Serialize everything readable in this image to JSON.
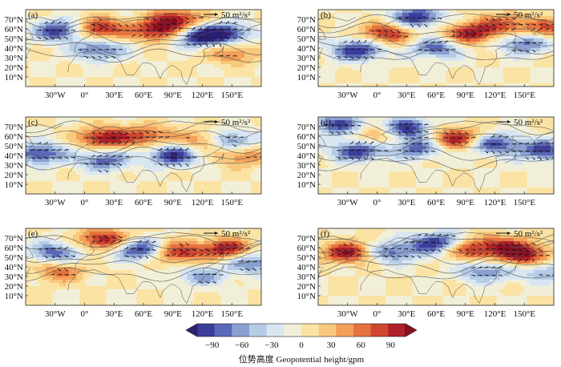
{
  "chart_data": {
    "type": "heatmap",
    "title": "",
    "description_kind": "six-panel map of geopotential height anomalies with wave-activity flux vectors",
    "panels": [
      {
        "label": "(a)",
        "reference_vector": "50 m²/s²",
        "centers": [
          {
            "lon": -25,
            "lat": 58,
            "value": -90
          },
          {
            "lon": 15,
            "lat": 60,
            "value": 90
          },
          {
            "lon": 15,
            "lat": 38,
            "value": -70
          },
          {
            "lon": 75,
            "lat": 58,
            "value": 90
          },
          {
            "lon": 95,
            "lat": 70,
            "value": 80
          },
          {
            "lon": 115,
            "lat": 52,
            "value": -90
          },
          {
            "lon": 145,
            "lat": 55,
            "value": -80
          },
          {
            "lon": 150,
            "lat": 35,
            "value": 50
          }
        ]
      },
      {
        "label": "(b)",
        "reference_vector": "50 m²/s²",
        "centers": [
          {
            "lon": 40,
            "lat": 72,
            "value": -90
          },
          {
            "lon": 10,
            "lat": 55,
            "value": 80
          },
          {
            "lon": -20,
            "lat": 38,
            "value": -90
          },
          {
            "lon": 95,
            "lat": 55,
            "value": 90
          },
          {
            "lon": 130,
            "lat": 65,
            "value": 60
          },
          {
            "lon": 60,
            "lat": 40,
            "value": -70
          },
          {
            "lon": 150,
            "lat": 45,
            "value": -70
          },
          {
            "lon": 175,
            "lat": 60,
            "value": 60
          }
        ]
      },
      {
        "label": "(c)",
        "reference_vector": "50 m²/s²",
        "centers": [
          {
            "lon": 20,
            "lat": 58,
            "value": 90
          },
          {
            "lon": -45,
            "lat": 42,
            "value": -80
          },
          {
            "lon": 20,
            "lat": 35,
            "value": -70
          },
          {
            "lon": 65,
            "lat": 60,
            "value": 60
          },
          {
            "lon": 90,
            "lat": 40,
            "value": -90
          },
          {
            "lon": 125,
            "lat": 55,
            "value": 70
          },
          {
            "lon": 145,
            "lat": 55,
            "value": -90
          },
          {
            "lon": 160,
            "lat": 40,
            "value": 50
          }
        ]
      },
      {
        "label": "(d)",
        "reference_vector": "50 m²/s²",
        "centers": [
          {
            "lon": -40,
            "lat": 72,
            "value": -80
          },
          {
            "lon": 30,
            "lat": 68,
            "value": -90
          },
          {
            "lon": -20,
            "lat": 45,
            "value": -90
          },
          {
            "lon": 40,
            "lat": 48,
            "value": -70
          },
          {
            "lon": 80,
            "lat": 58,
            "value": 90
          },
          {
            "lon": 120,
            "lat": 52,
            "value": -80
          },
          {
            "lon": 170,
            "lat": 45,
            "value": -80
          },
          {
            "lon": 0,
            "lat": 60,
            "value": 50
          }
        ]
      },
      {
        "label": "(e)",
        "reference_vector": "50 m²/s²",
        "centers": [
          {
            "lon": -30,
            "lat": 55,
            "value": -70
          },
          {
            "lon": 20,
            "lat": 68,
            "value": 90
          },
          {
            "lon": 55,
            "lat": 58,
            "value": -90
          },
          {
            "lon": 95,
            "lat": 55,
            "value": 80
          },
          {
            "lon": 145,
            "lat": 58,
            "value": 90
          },
          {
            "lon": 170,
            "lat": 45,
            "value": -70
          },
          {
            "lon": -25,
            "lat": 35,
            "value": 50
          },
          {
            "lon": 120,
            "lat": 30,
            "value": -50
          }
        ]
      },
      {
        "label": "(f)",
        "reference_vector": "50 m²/s²",
        "centers": [
          {
            "lon": -30,
            "lat": 55,
            "value": 90
          },
          {
            "lon": 60,
            "lat": 65,
            "value": -90
          },
          {
            "lon": 95,
            "lat": 58,
            "value": 70
          },
          {
            "lon": 130,
            "lat": 62,
            "value": 60
          },
          {
            "lon": 150,
            "lat": 52,
            "value": 90
          },
          {
            "lon": 110,
            "lat": 35,
            "value": -60
          },
          {
            "lon": 15,
            "lat": 55,
            "value": -70
          },
          {
            "lon": 170,
            "lat": 35,
            "value": -50
          }
        ]
      }
    ],
    "lon_range": [
      -60,
      180
    ],
    "lat_range": [
      0,
      80
    ],
    "x_ticks": [
      "30°W",
      "0°",
      "30°E",
      "60°E",
      "90°E",
      "120°E",
      "150°E"
    ],
    "x_tick_values": [
      -30,
      0,
      30,
      60,
      90,
      120,
      150
    ],
    "y_ticks": [
      "10°N",
      "20°N",
      "30°N",
      "40°N",
      "50°N",
      "60°N",
      "70°N"
    ],
    "y_tick_values": [
      10,
      20,
      30,
      40,
      50,
      60,
      70
    ],
    "colorbar": {
      "ticks": [
        "−90",
        "−60",
        "−30",
        "0",
        "30",
        "60",
        "90"
      ],
      "tick_values": [
        -90,
        -60,
        -30,
        0,
        30,
        60,
        90
      ],
      "range": [
        -105,
        105
      ],
      "colors": [
        "#2b1f74",
        "#3b3d9a",
        "#5a68b8",
        "#8aa0d0",
        "#b6cce6",
        "#d9e6f2",
        "#f2efd8",
        "#fbe3a4",
        "#f8c87c",
        "#f2a05a",
        "#e5733f",
        "#cf4630",
        "#b0202a",
        "#8a0f22"
      ],
      "title": "位势高度 Geopotential height/gpm"
    }
  }
}
